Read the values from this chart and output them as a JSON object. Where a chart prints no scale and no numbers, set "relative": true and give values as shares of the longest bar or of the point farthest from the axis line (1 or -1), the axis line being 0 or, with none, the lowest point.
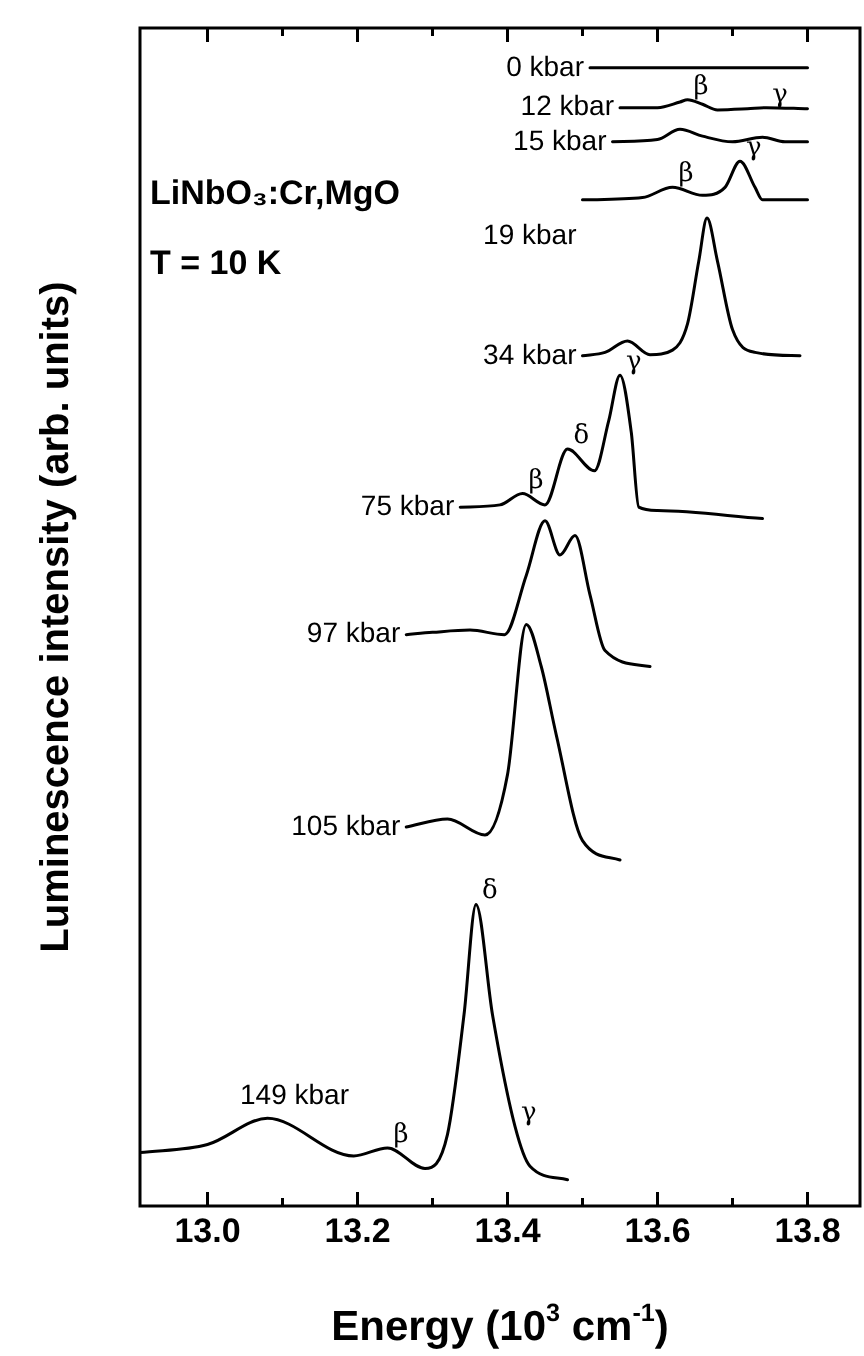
{
  "chart_data": {
    "type": "line",
    "relative": true,
    "xlabel": "Energy (10$^{3}$ cm$^{-1}$)",
    "ylabel": "Luminescence intensity (arb. units)",
    "xlim": [
      12.91,
      13.87
    ],
    "xticks": [
      {
        "value": 13.0,
        "label": "13.0"
      },
      {
        "value": 13.1,
        "label": null
      },
      13.2,
      {
        "value": 13.3,
        "label": null
      },
      13.4,
      {
        "value": 13.5,
        "label": null
      },
      13.6,
      {
        "value": 13.7,
        "label": null
      },
      13.8
    ],
    "grid": false,
    "marker": "none",
    "line_style": "solid",
    "series": [
      {
        "name": "0 kbar",
        "color": "#000000",
        "x": [
          13.51,
          13.8
        ],
        "values": [
          1.0,
          1.0
        ]
      },
      {
        "name": "12 kbar",
        "color": "#000000",
        "x": [
          13.55,
          13.6,
          13.63,
          13.64,
          13.66,
          13.68,
          13.72,
          13.745,
          13.8
        ],
        "values": [
          0.965,
          0.965,
          0.97,
          0.972,
          0.968,
          0.963,
          0.964,
          0.965,
          0.964
        ]
      },
      {
        "name": "15 kbar",
        "color": "#000000",
        "x": [
          13.54,
          13.6,
          13.63,
          13.66,
          13.7,
          13.74,
          13.77,
          13.8
        ],
        "values": [
          0.935,
          0.937,
          0.946,
          0.94,
          0.935,
          0.939,
          0.935,
          0.935
        ]
      },
      {
        "name": "19 kbar",
        "color": "#000000",
        "x": [
          13.5,
          13.58,
          13.62,
          13.66,
          13.69,
          13.71,
          13.73,
          13.74,
          13.8
        ],
        "values": [
          0.884,
          0.886,
          0.895,
          0.888,
          0.895,
          0.918,
          0.895,
          0.884,
          0.884
        ]
      },
      {
        "name": "34 kbar",
        "color": "#000000",
        "x": [
          13.5,
          13.53,
          13.56,
          13.59,
          13.62,
          13.64,
          13.655,
          13.666,
          13.68,
          13.7,
          13.73,
          13.79
        ],
        "values": [
          0.747,
          0.75,
          0.76,
          0.748,
          0.752,
          0.775,
          0.83,
          0.868,
          0.83,
          0.77,
          0.75,
          0.747
        ]
      },
      {
        "name": "75 kbar",
        "color": "#000000",
        "x": [
          13.337,
          13.39,
          13.42,
          13.45,
          13.48,
          13.516,
          13.535,
          13.55,
          13.565,
          13.575,
          13.6,
          13.74
        ],
        "values": [
          0.614,
          0.616,
          0.626,
          0.616,
          0.665,
          0.646,
          0.69,
          0.73,
          0.68,
          0.614,
          0.611,
          0.604
        ]
      },
      {
        "name": "97 kbar",
        "color": "#000000",
        "x": [
          13.265,
          13.3,
          13.35,
          13.396,
          13.425,
          13.45,
          13.47,
          13.49,
          13.51,
          13.53,
          13.59
        ],
        "values": [
          0.502,
          0.504,
          0.506,
          0.502,
          0.554,
          0.602,
          0.572,
          0.589,
          0.537,
          0.488,
          0.474
        ]
      },
      {
        "name": "105 kbar",
        "color": "#000000",
        "x": [
          13.265,
          13.32,
          13.37,
          13.4,
          13.425,
          13.445,
          13.465,
          13.5,
          13.55
        ],
        "values": [
          0.333,
          0.34,
          0.326,
          0.379,
          0.511,
          0.474,
          0.414,
          0.321,
          0.304
        ]
      },
      {
        "name": "149 kbar",
        "color": "#000000",
        "x": [
          12.91,
          13.0,
          13.08,
          13.195,
          13.24,
          13.29,
          13.32,
          13.342,
          13.358,
          13.38,
          13.41,
          13.43,
          13.48
        ],
        "values": [
          0.047,
          0.054,
          0.077,
          0.044,
          0.051,
          0.033,
          0.063,
          0.168,
          0.265,
          0.168,
          0.07,
          0.035,
          0.023
        ]
      }
    ],
    "annotations": [
      "LiNbO₃:Cr,MgO",
      "T = 10 K",
      {
        "text": "β",
        "x": 13.64,
        "y": 0.972
      },
      {
        "text": "γ",
        "x": 13.745,
        "y": 0.965
      },
      {
        "text": "β",
        "x": 13.62,
        "y": 0.895
      },
      {
        "text": "γ",
        "x": 13.71,
        "y": 0.918
      },
      {
        "text": "β",
        "x": 13.42,
        "y": 0.626
      },
      {
        "text": "δ",
        "x": 13.48,
        "y": 0.665
      },
      {
        "text": "γ",
        "x": 13.55,
        "y": 0.73
      },
      {
        "text": "β",
        "x": 13.24,
        "y": 0.051
      },
      {
        "text": "δ",
        "x": 13.358,
        "y": 0.265
      },
      {
        "text": "γ",
        "x": 13.41,
        "y": 0.07
      }
    ]
  }
}
